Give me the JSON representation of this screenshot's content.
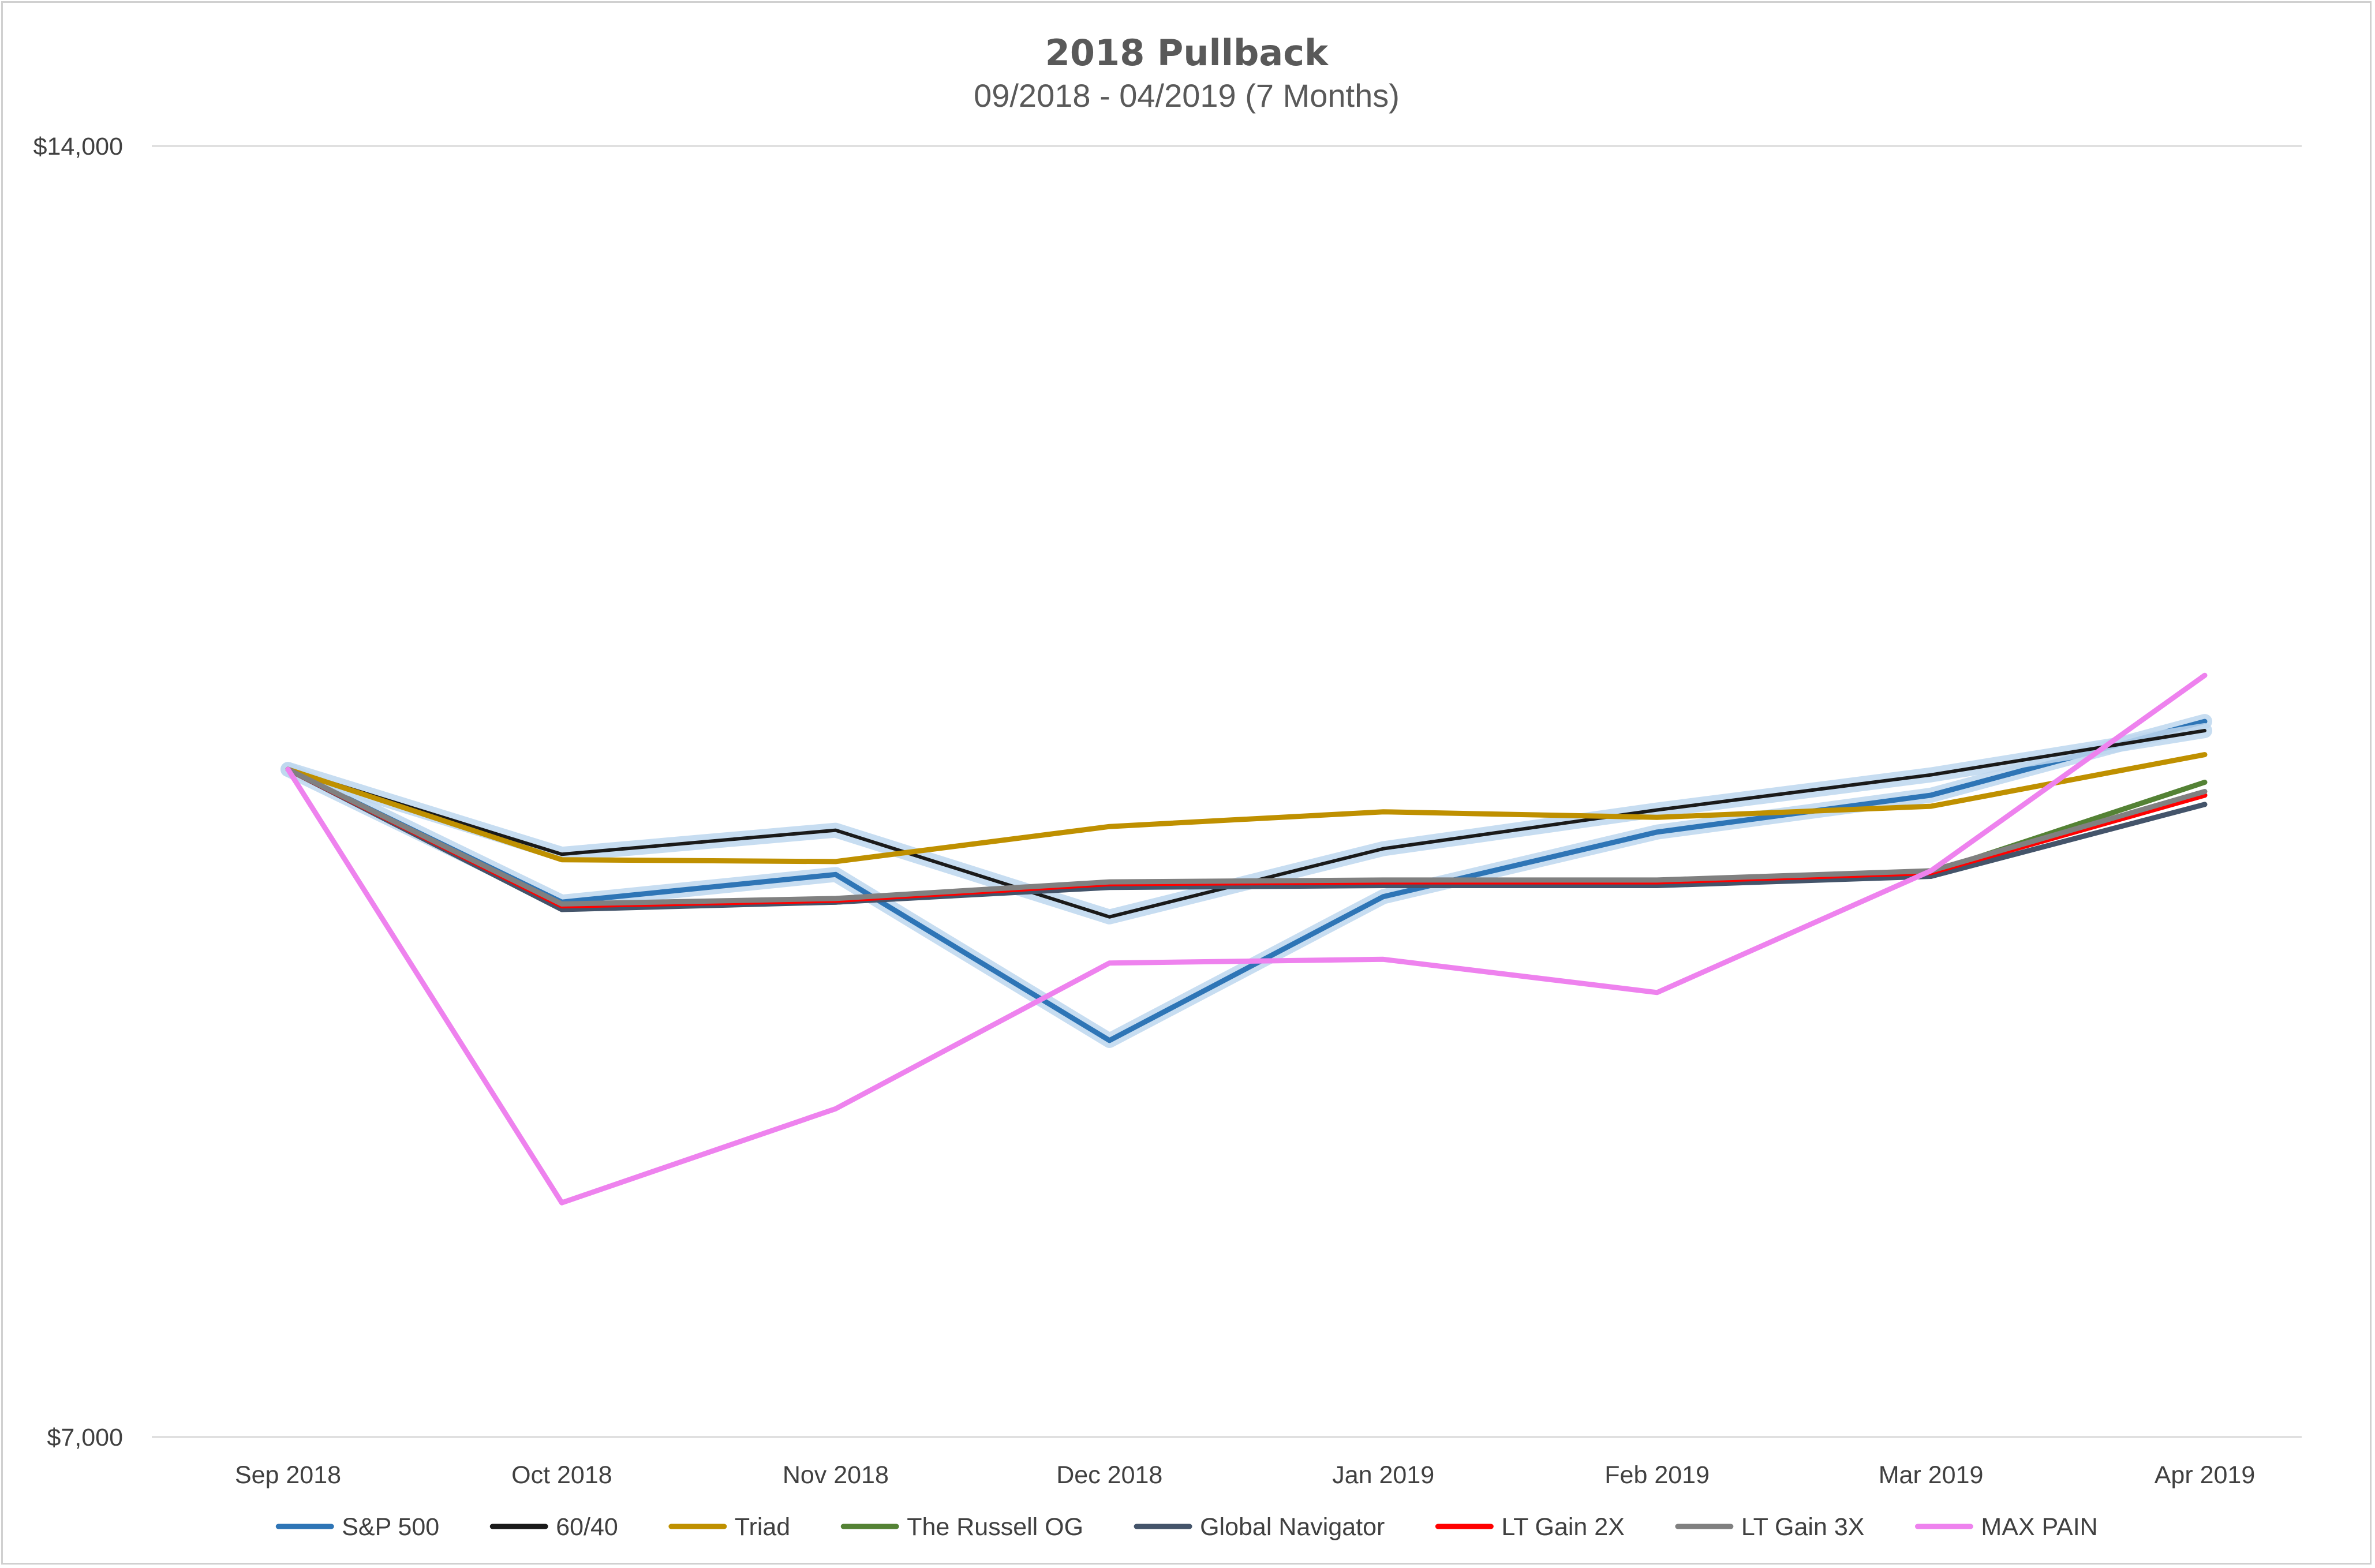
{
  "chart_data": {
    "type": "line",
    "title": "2018 Pullback",
    "subtitle": "09/2018 - 04/2019 (7 Months)",
    "xlabel": "",
    "ylabel": "",
    "categories": [
      "Sep 2018",
      "Oct 2018",
      "Nov 2018",
      "Dec 2018",
      "Jan 2019",
      "Feb 2019",
      "Mar 2019",
      "Apr 2019"
    ],
    "ylim": [
      7000,
      14000
    ],
    "yticks": [
      7000,
      14000
    ],
    "ytick_labels": [
      "$7,000",
      "$14,000"
    ],
    "grid": true,
    "legend_position": "bottom",
    "series": [
      {
        "name": "S&P 500",
        "color": "#2e75b6",
        "halo": true,
        "values": [
          10620,
          9900,
          10050,
          9150,
          9930,
          10280,
          10480,
          10880
        ]
      },
      {
        "name": "60/40",
        "color": "#1a1a1a",
        "halo": true,
        "values": [
          10620,
          10160,
          10290,
          9820,
          10190,
          10400,
          10590,
          10830
        ]
      },
      {
        "name": "Triad",
        "color": "#bf9000",
        "halo": false,
        "values": [
          10620,
          10130,
          10120,
          10310,
          10390,
          10360,
          10420,
          10700
        ]
      },
      {
        "name": "The Russell OG",
        "color": "#548235",
        "halo": false,
        "values": [
          10620,
          9870,
          9900,
          10000,
          10010,
          10010,
          10060,
          10550
        ]
      },
      {
        "name": "Global Navigator",
        "color": "#44546a",
        "halo": false,
        "values": [
          10620,
          9860,
          9900,
          9980,
          9990,
          9990,
          10040,
          10430
        ]
      },
      {
        "name": "LT Gain 2X",
        "color": "#ff0000",
        "halo": false,
        "values": [
          10620,
          9880,
          9910,
          10000,
          10010,
          10010,
          10060,
          10480
        ]
      },
      {
        "name": "LT Gain 3X",
        "color": "#808080",
        "halo": false,
        "values": [
          10620,
          9890,
          9920,
          10010,
          10020,
          10020,
          10070,
          10500
        ]
      },
      {
        "name": "MAX PAIN",
        "color": "#ee82ee",
        "halo": false,
        "values": [
          10620,
          8270,
          8780,
          9570,
          9590,
          9410,
          10070,
          11130
        ]
      }
    ]
  }
}
